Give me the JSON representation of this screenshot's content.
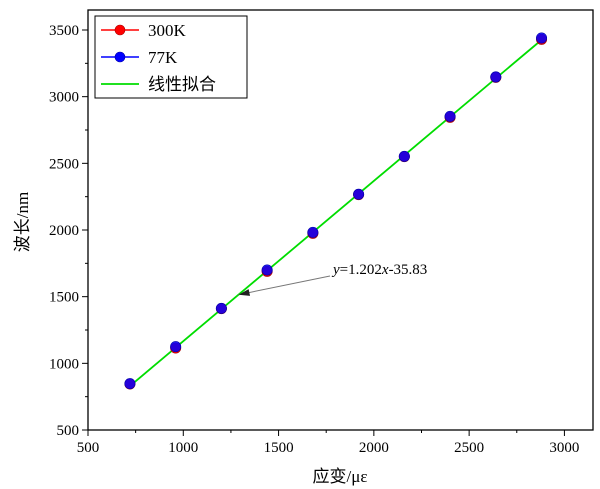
{
  "chart_data": {
    "type": "scatter",
    "xlabel": "应变/με",
    "ylabel": "波长/nm",
    "xlim": [
      500,
      3150
    ],
    "ylim": [
      500,
      3650
    ],
    "xticks": [
      500,
      1000,
      1500,
      2000,
      2500,
      3000
    ],
    "yticks": [
      500,
      1000,
      1500,
      2000,
      2500,
      3000,
      3500
    ],
    "x": [
      720,
      960,
      1200,
      1440,
      1680,
      1920,
      2160,
      2400,
      2640,
      2880
    ],
    "series": [
      {
        "name": "300K",
        "color": "#ff0000",
        "values": [
          845,
          1115,
          1410,
          1690,
          1975,
          2265,
          2550,
          2845,
          3145,
          3430
        ]
      },
      {
        "name": "77K",
        "color": "#0000ff",
        "values": [
          848,
          1125,
          1412,
          1700,
          1982,
          2268,
          2552,
          2852,
          3148,
          3440
        ]
      }
    ],
    "fit": {
      "name": "线性拟合",
      "color": "#00dd00",
      "slope": 1.202,
      "intercept": -35.83,
      "x_range": [
        720,
        2880
      ]
    },
    "annotation": {
      "prefix": "y",
      "text": "=1.202",
      "mid": "x",
      "suffix": "-35.83",
      "points_to_x": 1290
    },
    "legend_position": "top-left",
    "grid": false
  }
}
